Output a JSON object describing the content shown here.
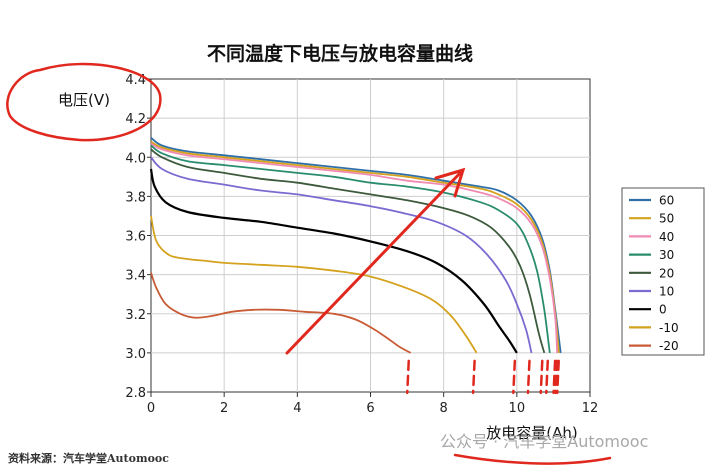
{
  "chart_data": {
    "type": "line",
    "title": "不同温度下电压与放电容量曲线",
    "xlabel": "放电容量(Ah)",
    "ylabel": "电压(V)",
    "xlim": [
      0,
      12
    ],
    "ylim": [
      2.8,
      4.4
    ],
    "xticks": [
      "0",
      "2",
      "4",
      "6",
      "8",
      "10",
      "12"
    ],
    "yticks": [
      "2.8",
      "3.0",
      "3.2",
      "3.4",
      "3.6",
      "3.8",
      "4.0",
      "4.2",
      "4.4"
    ],
    "grid": true,
    "legend": "right",
    "series": [
      {
        "name": "60",
        "color": "#2f6fa8",
        "x": [
          0,
          0.3,
          1,
          2,
          3,
          4,
          5,
          6,
          7,
          8,
          9,
          9.5,
          10,
          10.4,
          10.7,
          10.9,
          11.05,
          11.2
        ],
        "y": [
          4.1,
          4.06,
          4.03,
          4.01,
          3.99,
          3.97,
          3.95,
          3.93,
          3.91,
          3.88,
          3.85,
          3.83,
          3.78,
          3.7,
          3.58,
          3.42,
          3.22,
          3.0
        ]
      },
      {
        "name": "50",
        "color": "#d4a21e",
        "x": [
          0,
          0.3,
          1,
          2,
          3,
          4,
          5,
          6,
          7,
          8,
          9,
          9.5,
          10,
          10.4,
          10.7,
          10.9,
          11.05,
          11.15
        ],
        "y": [
          4.08,
          4.05,
          4.02,
          4.0,
          3.98,
          3.96,
          3.94,
          3.92,
          3.9,
          3.87,
          3.84,
          3.81,
          3.76,
          3.68,
          3.56,
          3.4,
          3.2,
          3.0
        ]
      },
      {
        "name": "40",
        "color": "#f08ab2",
        "x": [
          0,
          0.3,
          1,
          2,
          3,
          4,
          5,
          6,
          7,
          8,
          9,
          9.5,
          10,
          10.4,
          10.7,
          10.9,
          11.05,
          11.1
        ],
        "y": [
          4.07,
          4.04,
          4.01,
          3.99,
          3.97,
          3.95,
          3.93,
          3.91,
          3.88,
          3.86,
          3.82,
          3.79,
          3.74,
          3.66,
          3.54,
          3.38,
          3.18,
          3.0
        ]
      },
      {
        "name": "30",
        "color": "#2a8c6e",
        "x": [
          0,
          0.3,
          1,
          2,
          3,
          4,
          5,
          6,
          7,
          8,
          9,
          9.5,
          10,
          10.3,
          10.55,
          10.75,
          10.9
        ],
        "y": [
          4.06,
          4.02,
          3.98,
          3.96,
          3.94,
          3.92,
          3.9,
          3.87,
          3.85,
          3.82,
          3.77,
          3.73,
          3.66,
          3.56,
          3.42,
          3.22,
          3.0
        ]
      },
      {
        "name": "20",
        "color": "#3c5a3c",
        "x": [
          0,
          0.3,
          1,
          2,
          3,
          4,
          5,
          6,
          7,
          8,
          8.7,
          9.3,
          9.8,
          10.1,
          10.35,
          10.6,
          10.75
        ],
        "y": [
          4.04,
          4.0,
          3.95,
          3.92,
          3.89,
          3.87,
          3.84,
          3.81,
          3.78,
          3.74,
          3.7,
          3.64,
          3.54,
          3.44,
          3.3,
          3.1,
          3.0
        ]
      },
      {
        "name": "10",
        "color": "#7a6bd0",
        "x": [
          0,
          0.3,
          1,
          2,
          3,
          4,
          5,
          6,
          7,
          7.8,
          8.6,
          9.2,
          9.7,
          10.0,
          10.25,
          10.4
        ],
        "y": [
          4.0,
          3.94,
          3.89,
          3.86,
          3.83,
          3.81,
          3.78,
          3.75,
          3.71,
          3.67,
          3.6,
          3.5,
          3.37,
          3.25,
          3.12,
          3.0
        ]
      },
      {
        "name": "0",
        "color": "#000000",
        "x": [
          0,
          0.1,
          0.4,
          1,
          2,
          3,
          4,
          5,
          6,
          7,
          7.8,
          8.5,
          9.1,
          9.5,
          9.8,
          10.0
        ],
        "y": [
          3.94,
          3.85,
          3.77,
          3.72,
          3.69,
          3.67,
          3.64,
          3.61,
          3.57,
          3.52,
          3.46,
          3.37,
          3.25,
          3.14,
          3.06,
          3.0
        ]
      },
      {
        "name": "-10",
        "color": "#d4a21e",
        "x": [
          0,
          0.15,
          0.5,
          1,
          1.5,
          2,
          3,
          4,
          5,
          6,
          7,
          7.7,
          8.2,
          8.6,
          8.9
        ],
        "y": [
          3.7,
          3.57,
          3.5,
          3.48,
          3.47,
          3.46,
          3.45,
          3.44,
          3.42,
          3.39,
          3.33,
          3.27,
          3.19,
          3.09,
          3.0
        ]
      },
      {
        "name": "-20",
        "color": "#c95b35",
        "x": [
          0,
          0.15,
          0.4,
          0.8,
          1.2,
          1.7,
          2.2,
          2.8,
          3.5,
          4.2,
          5,
          5.6,
          6.1,
          6.5,
          6.8,
          7.1
        ],
        "y": [
          3.41,
          3.33,
          3.25,
          3.2,
          3.18,
          3.19,
          3.21,
          3.22,
          3.22,
          3.21,
          3.2,
          3.17,
          3.12,
          3.07,
          3.03,
          3.0
        ]
      }
    ]
  },
  "footer": {
    "left_text": "资料来源：汽车学堂Automooc",
    "watermark": "公众号 · 汽车学堂Automooc"
  },
  "annotation_color": "#e0281e"
}
